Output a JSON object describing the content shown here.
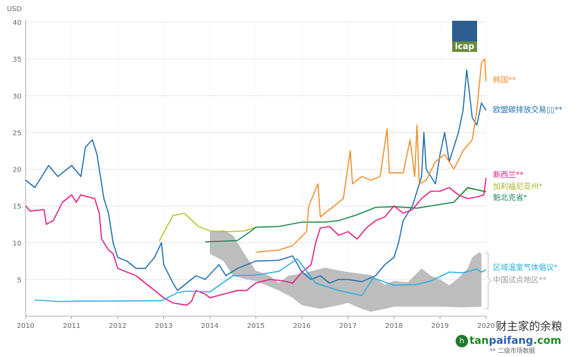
{
  "chart_data": {
    "type": "line",
    "ylabel": "USD",
    "ylim": [
      0,
      40
    ],
    "xlim": [
      2010,
      2020
    ],
    "yticks": [
      5,
      10,
      15,
      20,
      25,
      30,
      35,
      40
    ],
    "xticks": [
      "2010",
      "2011",
      "2012",
      "2013",
      "2014",
      "2015",
      "2016",
      "2017",
      "2018",
      "2019",
      "2020"
    ],
    "grid": true,
    "legend": "right",
    "series": [
      {
        "name": "欧盟碳排放交易▯▯**",
        "color": "#1f6fb0",
        "x": [
          2010.0,
          2010.2,
          2010.5,
          2010.7,
          2011.0,
          2011.2,
          2011.3,
          2011.45,
          2011.55,
          2011.7,
          2011.8,
          2011.9,
          2012.0,
          2012.2,
          2012.4,
          2012.6,
          2012.8,
          2012.95,
          2013.0,
          2013.2,
          2013.3,
          2013.5,
          2013.7,
          2013.9,
          2014.2,
          2014.35,
          2014.6,
          2014.8,
          2015.0,
          2015.5,
          2015.8,
          2016.0,
          2016.2,
          2016.4,
          2016.6,
          2016.8,
          2017.0,
          2017.3,
          2017.6,
          2017.8,
          2018.0,
          2018.1,
          2018.2,
          2018.4,
          2018.6,
          2018.65,
          2018.7,
          2018.9,
          2019.0,
          2019.1,
          2019.2,
          2019.4,
          2019.5,
          2019.58,
          2019.7,
          2019.8,
          2019.9,
          2020.0
        ],
        "y": [
          18.5,
          17.5,
          20.5,
          19,
          20.5,
          19,
          23,
          24,
          22,
          16,
          14,
          10,
          8,
          7.5,
          6.5,
          6.5,
          8,
          10,
          7,
          4.5,
          3.5,
          4.5,
          5.5,
          5,
          7,
          5.5,
          6.5,
          7,
          7.5,
          7.6,
          8.2,
          6,
          5,
          5.5,
          4.5,
          5,
          5,
          4.7,
          5.5,
          7,
          8,
          10,
          13,
          15,
          19,
          25,
          20,
          18,
          22,
          25,
          21,
          25,
          28,
          33.5,
          27,
          26,
          29,
          28
        ]
      },
      {
        "name": "韩国**",
        "color": "#f0902a",
        "x": [
          2015.0,
          2015.5,
          2015.8,
          2016.1,
          2016.15,
          2016.35,
          2016.4,
          2016.6,
          2016.9,
          2017.05,
          2017.1,
          2017.3,
          2017.5,
          2017.7,
          2017.85,
          2017.9,
          2018.2,
          2018.35,
          2018.45,
          2018.5,
          2018.55,
          2018.7,
          2018.9,
          2019.1,
          2019.3,
          2019.5,
          2019.7,
          2019.8,
          2019.9,
          2019.97,
          2020.0
        ],
        "y": [
          8.7,
          9,
          9.6,
          11.5,
          15,
          18,
          13.5,
          14.5,
          16,
          22.5,
          18,
          19,
          18.5,
          19,
          25.5,
          19.5,
          19.5,
          24,
          19,
          26,
          18,
          18.5,
          21,
          22,
          20,
          22.5,
          24,
          28,
          34.5,
          35,
          32
        ]
      },
      {
        "name": "新西兰**",
        "color": "#e6197f",
        "x": [
          2010.0,
          2010.1,
          2010.4,
          2010.45,
          2010.6,
          2010.8,
          2011.0,
          2011.1,
          2011.2,
          2011.5,
          2011.6,
          2011.65,
          2011.8,
          2011.9,
          2012.0,
          2012.2,
          2012.4,
          2012.6,
          2012.8,
          2013.0,
          2013.2,
          2013.5,
          2013.6,
          2013.7,
          2013.9,
          2014.0,
          2014.3,
          2014.6,
          2014.8,
          2015.0,
          2015.3,
          2015.6,
          2015.8,
          2016.0,
          2016.2,
          2016.3,
          2016.4,
          2016.6,
          2016.8,
          2017.0,
          2017.2,
          2017.4,
          2017.6,
          2017.8,
          2018.0,
          2018.2,
          2018.4,
          2018.6,
          2018.8,
          2019.0,
          2019.2,
          2019.4,
          2019.6,
          2019.8,
          2019.95,
          2020.0
        ],
        "y": [
          15,
          14.3,
          14.5,
          12.5,
          13,
          15.5,
          16.5,
          15.5,
          16.5,
          16,
          14,
          10.5,
          9,
          8.5,
          6.5,
          6,
          5.5,
          4.5,
          3.5,
          2.5,
          1.8,
          1.5,
          2,
          3.5,
          3,
          2.5,
          3,
          3.5,
          3.5,
          4.5,
          5,
          4.8,
          4.5,
          6,
          7,
          10,
          12,
          12.2,
          11,
          11.5,
          10.5,
          12,
          13,
          13.5,
          15,
          14,
          14.5,
          16,
          17,
          17,
          17.5,
          16.5,
          16,
          16.2,
          16.5,
          18.8
        ]
      },
      {
        "name": "加利福尼亚州*",
        "color": "#b5c52b",
        "x": [
          2012.9,
          2013.2,
          2013.45,
          2013.75,
          2014.0,
          2014.4,
          2014.75,
          2015.0,
          2015.5,
          2016.0,
          2016.5,
          2016.8,
          2017.2,
          2017.6,
          2018.0,
          2018.5,
          2019.0,
          2019.3,
          2019.6,
          2020.0
        ],
        "y": [
          10.2,
          13.7,
          14,
          12.2,
          11.6,
          11.5,
          11.6,
          12.1,
          12.2,
          12.8,
          12.8,
          13,
          13.8,
          14.8,
          14.9,
          14.7,
          15.2,
          15.5,
          17.4,
          17
        ]
      },
      {
        "name": "魁北克省*",
        "color": "#1e8a5a",
        "x": [
          2013.9,
          2014.6,
          2014.9,
          2015.0,
          2015.5,
          2016.0,
          2016.5,
          2016.8,
          2017.2,
          2017.6,
          2018.0,
          2018.5,
          2019.0,
          2019.3,
          2019.6,
          2020.0
        ],
        "y": [
          10.1,
          10.3,
          11.6,
          12.1,
          12.2,
          12.8,
          12.8,
          13,
          13.8,
          14.8,
          14.9,
          14.7,
          15.2,
          15.5,
          17.5,
          16.9
        ]
      },
      {
        "name": "区域温室气体倡议*",
        "color": "#29aee3",
        "x": [
          2010.2,
          2010.7,
          2011.2,
          2012.95,
          2013.3,
          2013.5,
          2014.0,
          2014.5,
          2015.0,
          2015.5,
          2015.9,
          2016.3,
          2016.8,
          2017.3,
          2017.55,
          2018.0,
          2018.5,
          2018.8,
          2019.2,
          2019.5,
          2019.8,
          2019.9,
          2020.0
        ],
        "y": [
          2.2,
          2.0,
          2.05,
          2.1,
          3.2,
          3.4,
          3.3,
          5.5,
          5.6,
          6.1,
          7.8,
          4.5,
          3.5,
          2.8,
          5.2,
          4.2,
          4.3,
          4.8,
          6.0,
          5.9,
          6.4,
          6,
          6.3
        ]
      }
    ],
    "band": {
      "name": "中国试点地区**",
      "color": "#bdbdbd",
      "upper": {
        "x": [
          2014.0,
          2014.3,
          2014.5,
          2014.8,
          2015.0,
          2015.3,
          2015.5,
          2015.7,
          2016.0,
          2016.5,
          2017.0,
          2017.5,
          2017.8,
          2018.0,
          2018.3,
          2018.6,
          2018.8,
          2019.0,
          2019.2,
          2019.4,
          2019.6,
          2019.7,
          2019.85,
          2019.9
        ],
        "y": [
          11.5,
          11.7,
          11.0,
          8,
          6.2,
          5.5,
          4.5,
          5.5,
          5.8,
          6.6,
          6,
          5.6,
          4.3,
          4.8,
          4.6,
          6.5,
          5.5,
          5.0,
          4.2,
          5.2,
          6.5,
          8,
          8.7,
          8.5
        ]
      },
      "lower": {
        "x": [
          2014.0,
          2014.3,
          2014.5,
          2014.8,
          2015.0,
          2015.5,
          2015.8,
          2016.0,
          2016.4,
          2016.8,
          2017.0,
          2017.3,
          2017.5,
          2017.8,
          2018.0,
          2018.5,
          2019.0,
          2019.5,
          2019.9
        ],
        "y": [
          8.5,
          7.5,
          5.5,
          5,
          4.8,
          3.5,
          2.5,
          1.5,
          1.0,
          1.5,
          1.8,
          1.0,
          0.6,
          1.0,
          1.3,
          1.3,
          1.3,
          1.2,
          1.3
        ]
      }
    }
  },
  "legend_labels": {
    "korea": "韩国**",
    "eu": "欧盟碳排放交易▯▯**",
    "nz": "新西兰**",
    "california": "加利福尼亚州*",
    "quebec": "魁北克省*",
    "rggi": "区域温室气体倡议*",
    "china": "中国试点地区**"
  },
  "logo": "icap",
  "footnote": "** 二级市场数据",
  "watermark": {
    "line1": "财主家的余粮",
    "site_a": "tan",
    "site_b": "paifang",
    "site_c": ".com"
  }
}
